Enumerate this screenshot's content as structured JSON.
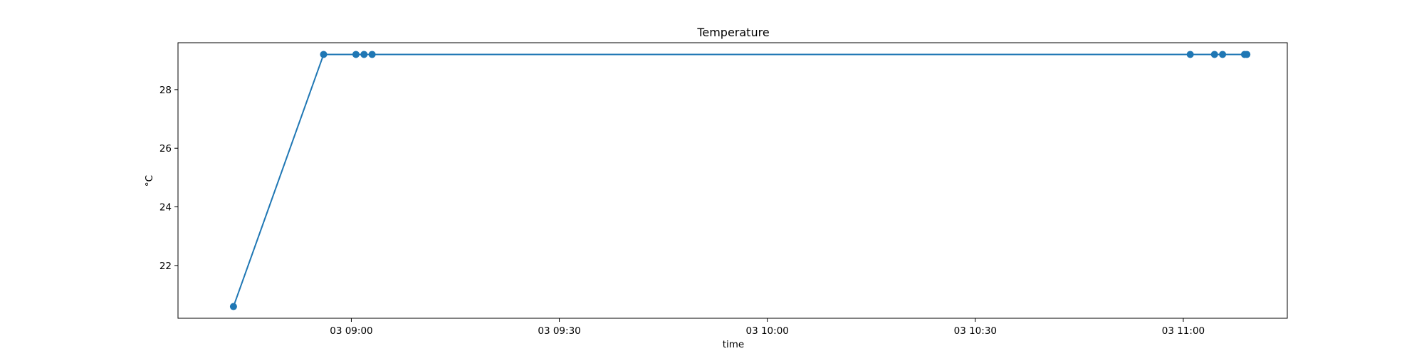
{
  "chart_data": {
    "type": "line",
    "title": "Temperature",
    "xlabel": "time",
    "ylabel": "°C",
    "x_ticks": [
      {
        "t": "2000-01-03T09:00",
        "label": "03 09:00"
      },
      {
        "t": "2000-01-03T09:30",
        "label": "03 09:30"
      },
      {
        "t": "2000-01-03T10:00",
        "label": "03 10:00"
      },
      {
        "t": "2000-01-03T10:30",
        "label": "03 10:30"
      },
      {
        "t": "2000-01-03T11:00",
        "label": "03 11:00"
      }
    ],
    "y_ticks": [
      22,
      24,
      26,
      28
    ],
    "xlim": [
      "2000-01-03T08:35:00",
      "2000-01-03T11:15:00"
    ],
    "ylim": [
      20.2,
      29.6
    ],
    "grid": false,
    "series": [
      {
        "color": "#1f77b4",
        "marker": "circle",
        "points": [
          {
            "x": "2000-01-03T08:43:00",
            "y": 20.6
          },
          {
            "x": "2000-01-03T08:56:00",
            "y": 29.2
          },
          {
            "x": "2000-01-03T09:00:40",
            "y": 29.2
          },
          {
            "x": "2000-01-03T09:01:50",
            "y": 29.2
          },
          {
            "x": "2000-01-03T09:03:00",
            "y": 29.2
          },
          {
            "x": "2000-01-03T11:01:00",
            "y": 29.2
          },
          {
            "x": "2000-01-03T11:04:30",
            "y": 29.2
          },
          {
            "x": "2000-01-03T11:05:40",
            "y": 29.2
          },
          {
            "x": "2000-01-03T11:08:50",
            "y": 29.2
          },
          {
            "x": "2000-01-03T11:09:10",
            "y": 29.2
          }
        ]
      }
    ]
  }
}
